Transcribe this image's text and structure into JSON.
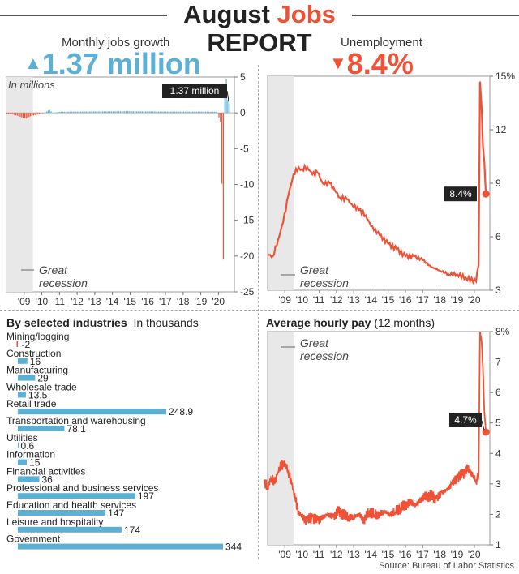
{
  "header": {
    "title_a": "August",
    "title_b": "Jobs",
    "title_c": "REPORT"
  },
  "jobs": {
    "subtitle": "Monthly jobs growth",
    "headline": "1.37 million",
    "units": "In millions",
    "callout": "1.37 million",
    "recession": [
      "Great",
      "recession"
    ]
  },
  "unemp": {
    "subtitle": "Unemployment",
    "headline": "8.4%",
    "callout": "8.4%",
    "recession": [
      "Great",
      "recession"
    ]
  },
  "industries": {
    "title": "By selected industries",
    "units": "In thousands"
  },
  "pay": {
    "title": "Average hourly pay",
    "title_suffix": "(12 months)",
    "callout": "4.7%",
    "recession": [
      "Great",
      "recession"
    ]
  },
  "source": "Source: Bureau of Labor Statistics",
  "chart_data": [
    {
      "type": "bar",
      "id": "jobs",
      "title": "Monthly jobs growth",
      "ylabel": "In millions",
      "ylim": [
        -25,
        5
      ],
      "yticks": [
        "5",
        "0",
        "-5",
        "-10",
        "-15",
        "-20",
        "-25"
      ],
      "xticks": [
        "'09",
        "'10",
        "'11",
        "'12",
        "'13",
        "'14",
        "'15",
        "'16",
        "'17",
        "'18",
        "'19",
        "'20"
      ],
      "recession": [
        2008.0,
        2009.5
      ],
      "points": [
        [
          2008.0,
          -0.1
        ],
        [
          2008.3,
          -0.2
        ],
        [
          2008.6,
          -0.4
        ],
        [
          2008.9,
          -0.7
        ],
        [
          2009.1,
          -0.8
        ],
        [
          2009.3,
          -0.5
        ],
        [
          2009.6,
          -0.3
        ],
        [
          2009.9,
          -0.1
        ],
        [
          2010.2,
          0.1
        ],
        [
          2010.4,
          0.45
        ],
        [
          2010.6,
          0.0
        ],
        [
          2011.0,
          0.15
        ],
        [
          2013.0,
          0.2
        ],
        [
          2015.0,
          0.22
        ],
        [
          2017.0,
          0.18
        ],
        [
          2019.0,
          0.17
        ],
        [
          2019.9,
          0.15
        ],
        [
          2020.1,
          -1.4
        ],
        [
          2020.25,
          -20.5
        ],
        [
          2020.33,
          2.7
        ],
        [
          2020.42,
          4.8
        ],
        [
          2020.5,
          1.8
        ],
        [
          2020.58,
          1.37
        ]
      ]
    },
    {
      "type": "line",
      "id": "unemployment",
      "title": "Unemployment",
      "ylim": [
        3,
        15
      ],
      "yticks": [
        "15%",
        "12",
        "9",
        "6",
        "3"
      ],
      "xticks": [
        "'09",
        "'10",
        "'11",
        "'12",
        "'13",
        "'14",
        "'15",
        "'16",
        "'17",
        "'18",
        "'19",
        "'20"
      ],
      "recession": [
        2008.0,
        2009.5
      ],
      "points": [
        [
          2008.0,
          5.0
        ],
        [
          2008.3,
          4.9
        ],
        [
          2008.6,
          5.8
        ],
        [
          2008.9,
          6.8
        ],
        [
          2009.2,
          8.3
        ],
        [
          2009.5,
          9.5
        ],
        [
          2009.8,
          9.9
        ],
        [
          2010.0,
          9.8
        ],
        [
          2010.3,
          9.9
        ],
        [
          2010.6,
          9.5
        ],
        [
          2010.9,
          9.6
        ],
        [
          2011.2,
          9.0
        ],
        [
          2011.6,
          9.0
        ],
        [
          2011.9,
          8.6
        ],
        [
          2012.2,
          8.2
        ],
        [
          2012.6,
          8.1
        ],
        [
          2012.9,
          7.8
        ],
        [
          2013.3,
          7.5
        ],
        [
          2013.7,
          7.2
        ],
        [
          2014.0,
          6.6
        ],
        [
          2014.5,
          6.1
        ],
        [
          2015.0,
          5.6
        ],
        [
          2015.5,
          5.3
        ],
        [
          2016.0,
          4.9
        ],
        [
          2016.5,
          4.9
        ],
        [
          2017.0,
          4.7
        ],
        [
          2017.5,
          4.3
        ],
        [
          2018.0,
          4.1
        ],
        [
          2018.5,
          3.9
        ],
        [
          2019.0,
          3.9
        ],
        [
          2019.5,
          3.7
        ],
        [
          2020.1,
          3.5
        ],
        [
          2020.25,
          4.4
        ],
        [
          2020.33,
          14.7
        ],
        [
          2020.42,
          13.3
        ],
        [
          2020.5,
          11.1
        ],
        [
          2020.58,
          10.2
        ],
        [
          2020.67,
          8.4
        ]
      ]
    },
    {
      "type": "bar",
      "id": "industries",
      "title": "By selected industries",
      "units": "In thousands",
      "categories": [
        "Mining/logging",
        "Construction",
        "Manufacturing",
        "Wholesale trade",
        "Retail trade",
        "Transportation and warehousing",
        "Utilities",
        "Information",
        "Financial activities",
        "Professional and business services",
        "Education and health services",
        "Leisure and hospitality",
        "Government"
      ],
      "values": [
        -2,
        16,
        29,
        13.5,
        248.9,
        78.1,
        0.6,
        15,
        36,
        197,
        147,
        174,
        344
      ],
      "labels": [
        "-2",
        "16",
        "29",
        "13.5",
        "248.9",
        "78.1",
        "0.6",
        "15",
        "36",
        "197",
        "147",
        "174",
        "344"
      ]
    },
    {
      "type": "line",
      "id": "hourly_pay",
      "title": "Average hourly pay (12 months)",
      "ylim": [
        1,
        8
      ],
      "yticks": [
        "8%",
        "7",
        "6",
        "5",
        "4",
        "3",
        "2",
        "1"
      ],
      "xticks": [
        "'09",
        "'10",
        "'11",
        "'12",
        "'13",
        "'14",
        "'15",
        "'16",
        "'17",
        "'18",
        "'19",
        "'20"
      ],
      "recession": [
        2008.0,
        2009.5
      ],
      "points": [
        [
          2007.8,
          3.0
        ],
        [
          2008.0,
          2.9
        ],
        [
          2008.2,
          3.2
        ],
        [
          2008.4,
          3.0
        ],
        [
          2008.6,
          3.4
        ],
        [
          2008.8,
          3.6
        ],
        [
          2009.0,
          3.7
        ],
        [
          2009.2,
          3.4
        ],
        [
          2009.4,
          3.0
        ],
        [
          2009.6,
          2.5
        ],
        [
          2009.8,
          2.1
        ],
        [
          2010.0,
          1.9
        ],
        [
          2010.3,
          1.8
        ],
        [
          2010.6,
          1.9
        ],
        [
          2010.9,
          1.8
        ],
        [
          2011.2,
          1.9
        ],
        [
          2011.5,
          2.0
        ],
        [
          2011.8,
          1.9
        ],
        [
          2012.1,
          2.1
        ],
        [
          2012.4,
          2.0
        ],
        [
          2012.7,
          1.9
        ],
        [
          2013.0,
          1.9
        ],
        [
          2013.3,
          2.0
        ],
        [
          2013.6,
          1.8
        ],
        [
          2013.9,
          2.1
        ],
        [
          2014.2,
          2.0
        ],
        [
          2014.5,
          2.0
        ],
        [
          2014.8,
          2.1
        ],
        [
          2015.1,
          2.0
        ],
        [
          2015.4,
          2.1
        ],
        [
          2015.7,
          2.2
        ],
        [
          2016.0,
          2.3
        ],
        [
          2016.3,
          2.4
        ],
        [
          2016.6,
          2.3
        ],
        [
          2016.9,
          2.5
        ],
        [
          2017.2,
          2.6
        ],
        [
          2017.5,
          2.6
        ],
        [
          2017.8,
          2.5
        ],
        [
          2018.1,
          2.7
        ],
        [
          2018.4,
          2.8
        ],
        [
          2018.7,
          3.0
        ],
        [
          2019.0,
          3.2
        ],
        [
          2019.3,
          3.3
        ],
        [
          2019.6,
          3.5
        ],
        [
          2019.9,
          3.3
        ],
        [
          2020.1,
          3.1
        ],
        [
          2020.25,
          3.3
        ],
        [
          2020.33,
          8.0
        ],
        [
          2020.42,
          7.7
        ],
        [
          2020.5,
          6.8
        ],
        [
          2020.58,
          5.4
        ],
        [
          2020.67,
          4.7
        ]
      ]
    }
  ],
  "colors": {
    "blue": "#5bb0d4",
    "red": "#ef5236",
    "bar": "#5bb0d4",
    "recession": "#e8e8e8"
  }
}
